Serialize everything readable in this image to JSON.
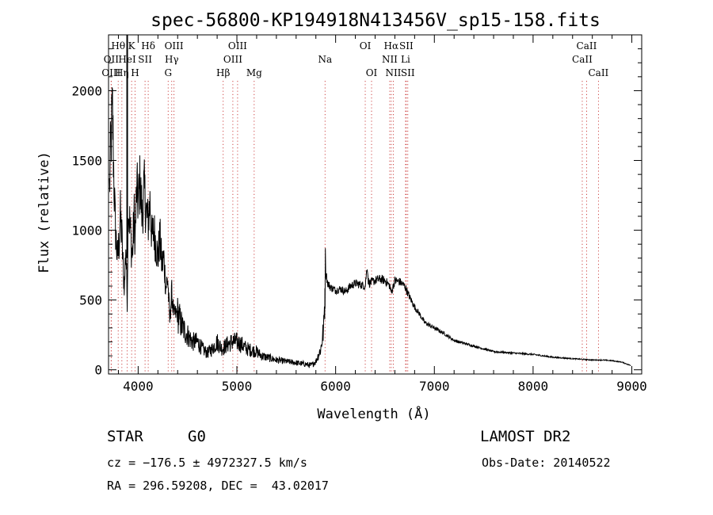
{
  "chart_data": {
    "type": "line",
    "title": "spec-56800-KP194918N413456V_sp15-158.fits",
    "xlabel": "Wavelength (Å)",
    "ylabel": "Flux (relative)",
    "xlim": [
      3700,
      9100
    ],
    "ylim": [
      -30,
      2400
    ],
    "xticks": [
      4000,
      5000,
      6000,
      7000,
      8000,
      9000
    ],
    "yticks": [
      0,
      500,
      1000,
      1500,
      2000
    ],
    "minor_x_step": 200,
    "minor_y_step": 100,
    "grid": false,
    "series": [
      {
        "x": [
          3710,
          3725,
          3740,
          3755,
          3765,
          3775,
          3790,
          3805,
          3820,
          3835,
          3850,
          3862,
          3875,
          3889,
          3900,
          3920,
          3940,
          3960,
          3970,
          3985,
          4000,
          4020,
          4040,
          4060,
          4080,
          4100,
          4120,
          4140,
          4160,
          4180,
          4200,
          4220,
          4240,
          4260,
          4280,
          4300,
          4320,
          4340,
          4360,
          4400,
          4450,
          4500,
          4550,
          4600,
          4650,
          4700,
          4750,
          4800,
          4850,
          4900,
          4950,
          5000,
          5050,
          5100,
          5150,
          5200,
          5250,
          5300,
          5400,
          5500,
          5600,
          5700,
          5750,
          5800,
          5850,
          5880,
          5890,
          5893,
          5900,
          5920,
          5950,
          6000,
          6050,
          6100,
          6150,
          6200,
          6250,
          6300,
          6320,
          6330,
          6340,
          6400,
          6450,
          6500,
          6550,
          6563,
          6600,
          6650,
          6700,
          6750,
          6800,
          6850,
          6900,
          6950,
          7000,
          7100,
          7200,
          7300,
          7400,
          7500,
          7600,
          7700,
          7800,
          7900,
          8000,
          8100,
          8200,
          8300,
          8400,
          8500,
          8600,
          8700,
          8800,
          8900,
          8990
        ],
        "y": [
          1300,
          1650,
          1850,
          1350,
          1100,
          950,
          800,
          900,
          1100,
          950,
          700,
          600,
          900,
          500,
          1200,
          1000,
          800,
          1100,
          950,
          1300,
          1200,
          1350,
          1100,
          1300,
          1150,
          1050,
          1200,
          950,
          1000,
          900,
          800,
          950,
          750,
          800,
          600,
          650,
          350,
          550,
          400,
          400,
          300,
          250,
          200,
          200,
          150,
          120,
          150,
          200,
          150,
          180,
          200,
          200,
          180,
          150,
          140,
          130,
          100,
          90,
          70,
          60,
          50,
          40,
          30,
          60,
          150,
          300,
          500,
          650,
          700,
          620,
          590,
          570,
          580,
          560,
          600,
          620,
          610,
          600,
          750,
          640,
          620,
          640,
          650,
          640,
          600,
          550,
          640,
          630,
          600,
          520,
          450,
          400,
          340,
          320,
          300,
          260,
          210,
          190,
          170,
          150,
          130,
          125,
          120,
          115,
          110,
          100,
          90,
          85,
          80,
          75,
          70,
          70,
          65,
          55,
          30
        ]
      }
    ],
    "spectral_lines": [
      {
        "label": "Hθ",
        "x": 3798,
        "row": 0
      },
      {
        "label": "OII",
        "x": 3727,
        "row": 1
      },
      {
        "label": "OIII",
        "x": 3727,
        "row": 2
      },
      {
        "label": "Hη",
        "x": 3835,
        "row": 2
      },
      {
        "label": "K",
        "x": 3934,
        "row": 0
      },
      {
        "label": "HeI",
        "x": 3889,
        "row": 1
      },
      {
        "label": "SII",
        "x": 4070,
        "row": 1
      },
      {
        "label": "H",
        "x": 3969,
        "row": 2
      },
      {
        "label": "Hδ",
        "x": 4102,
        "row": 0
      },
      {
        "label": "OIII",
        "x": 4363,
        "row": 0
      },
      {
        "label": "Hγ",
        "x": 4340,
        "row": 1
      },
      {
        "label": "G",
        "x": 4304,
        "row": 2
      },
      {
        "label": "OIII",
        "x": 5007,
        "row": 0
      },
      {
        "label": "OIII",
        "x": 4959,
        "row": 1
      },
      {
        "label": "Hβ",
        "x": 4861,
        "row": 2
      },
      {
        "label": "Mg",
        "x": 5175,
        "row": 2
      },
      {
        "label": "Na",
        "x": 5893,
        "row": 1
      },
      {
        "label": "OI",
        "x": 6300,
        "row": 0
      },
      {
        "label": "OI",
        "x": 6364,
        "row": 2
      },
      {
        "label": "Hα",
        "x": 6563,
        "row": 0
      },
      {
        "label": "SII",
        "x": 6716,
        "row": 0
      },
      {
        "label": "NII",
        "x": 6548,
        "row": 1
      },
      {
        "label": "Li",
        "x": 6708,
        "row": 1
      },
      {
        "label": "NII",
        "x": 6584,
        "row": 2
      },
      {
        "label": "SII",
        "x": 6731,
        "row": 2
      },
      {
        "label": "CaII",
        "x": 8542,
        "row": 0
      },
      {
        "label": "CaII",
        "x": 8498,
        "row": 1
      },
      {
        "label": "CaII",
        "x": 8662,
        "row": 2
      }
    ]
  },
  "info": {
    "object_class": "STAR",
    "subclass": "G0",
    "survey": "LAMOST DR2",
    "cz": "cz = −176.5 ± 4972327.5 km/s",
    "obs_date": "Obs-Date: 20140522",
    "coords": "RA = 296.59208, DEC =  43.02017"
  },
  "colors": {
    "spectrum": "#000000",
    "line_markers": "#c83232",
    "axes": "#000000"
  }
}
